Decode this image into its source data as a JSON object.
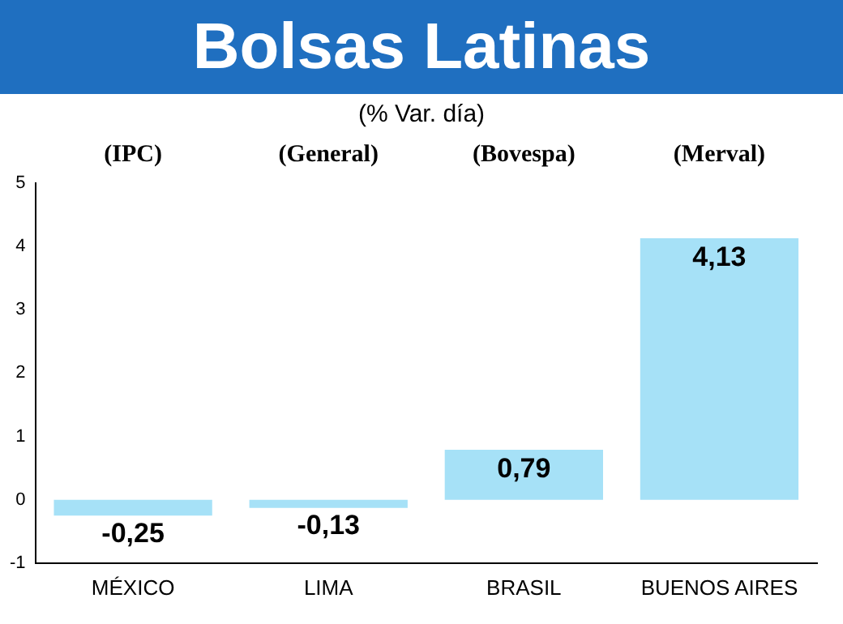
{
  "chart_data": {
    "type": "bar",
    "title": "Bolsas Latinas",
    "subtitle": "(% Var. día)",
    "categories": [
      "MÉXICO",
      "LIMA",
      "BRASIL",
      "BUENOS AIRES"
    ],
    "values": [
      -0.25,
      -0.13,
      0.79,
      4.13
    ],
    "value_labels": [
      "-0,25",
      "-0,13",
      "0,79",
      "4,13"
    ],
    "color": "#a6e1f7",
    "ylim": [
      -1,
      5
    ],
    "yticks": [
      -1,
      0,
      1,
      2,
      3,
      4,
      5
    ],
    "grid": false,
    "legend": false,
    "annotations": [
      "(IPC)",
      "(General)",
      "(Bovespa)",
      "(Merval)"
    ]
  }
}
